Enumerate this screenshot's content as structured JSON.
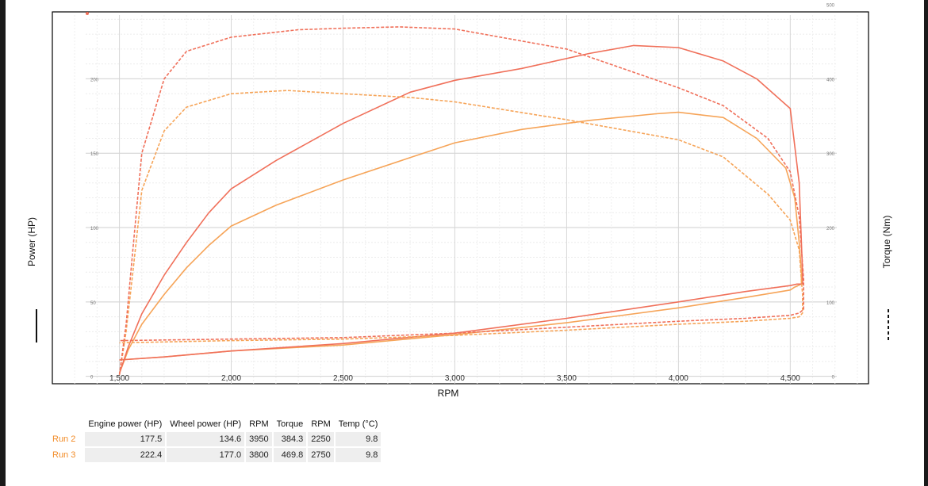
{
  "chart_data": {
    "type": "line",
    "xlabel": "RPM",
    "ylabel_left": "Power (HP)",
    "ylabel_right": "Torque (Nm)",
    "xlim": [
      1200,
      4850
    ],
    "x_ticks": [
      1500,
      2000,
      2500,
      3000,
      3500,
      4000,
      4500
    ],
    "x_tick_labels": [
      "1,500",
      "2,000",
      "2,500",
      "3,000",
      "3,500",
      "4,000",
      "4,500"
    ],
    "ylim_left": [
      -5,
      245
    ],
    "y_ticks_left": [
      0,
      50,
      100,
      150,
      200
    ],
    "ylim_right": [
      -10,
      490
    ],
    "y_ticks_right": [
      0,
      100,
      200,
      300,
      400,
      500
    ],
    "grid": true,
    "colors": {
      "run2": "#f6a458",
      "run3": "#f0705a",
      "axis": "#000000",
      "grid": "#dddddd"
    },
    "series": [
      {
        "name": "Run 2",
        "measure": "power",
        "axis": "left",
        "style": "solid",
        "color": "#f6a458",
        "x": [
          1500,
          1540,
          1600,
          1700,
          1800,
          1900,
          2000,
          2200,
          2500,
          2800,
          3000,
          3300,
          3600,
          3900,
          4000,
          4200,
          4350,
          4480,
          4520,
          4540,
          4550,
          4550,
          4520,
          4500,
          4300,
          4000,
          3500,
          3000,
          2500,
          2000,
          1700,
          1500
        ],
        "y": [
          2,
          18,
          35,
          55,
          73,
          88,
          101,
          115,
          132,
          147,
          157,
          166,
          172,
          176.5,
          177.5,
          174,
          160,
          140,
          120,
          90,
          70,
          62,
          60,
          58,
          53,
          46,
          36,
          28,
          21,
          17,
          13,
          11
        ]
      },
      {
        "name": "Run 3",
        "measure": "power",
        "axis": "left",
        "style": "solid",
        "color": "#f0705a",
        "x": [
          1500,
          1540,
          1600,
          1700,
          1800,
          1900,
          2000,
          2200,
          2500,
          2800,
          3000,
          3300,
          3600,
          3800,
          4000,
          4200,
          4350,
          4500,
          4540,
          4550,
          4555,
          4555,
          4530,
          4500,
          4300,
          4000,
          3500,
          3000,
          2500,
          2000,
          1700,
          1500
        ],
        "y": [
          2,
          20,
          42,
          68,
          90,
          110,
          126,
          145,
          170,
          191,
          199,
          207,
          217,
          222.4,
          221,
          212,
          200,
          180,
          130,
          90,
          70,
          62,
          62,
          61,
          57,
          50,
          39,
          29,
          22,
          17,
          13,
          11
        ]
      },
      {
        "name": "Run 2",
        "measure": "torque",
        "axis": "right",
        "style": "dashed",
        "color": "#f6a458",
        "x": [
          1500,
          1530,
          1560,
          1600,
          1700,
          1800,
          2000,
          2250,
          2500,
          2800,
          3000,
          3500,
          4000,
          4200,
          4400,
          4500,
          4540,
          4555,
          4555,
          4540,
          4500,
          4300,
          4000,
          3500,
          3000,
          2500,
          2000,
          1500
        ],
        "y": [
          2,
          60,
          140,
          250,
          330,
          362,
          380,
          384.3,
          380,
          375,
          369,
          345,
          318,
          295,
          245,
          210,
          170,
          110,
          85,
          80,
          78,
          74,
          70,
          62,
          55,
          50,
          48,
          45
        ]
      },
      {
        "name": "Run 3",
        "measure": "torque",
        "axis": "right",
        "style": "dashed",
        "color": "#f0705a",
        "x": [
          1500,
          1530,
          1560,
          1600,
          1700,
          1800,
          2000,
          2300,
          2500,
          2750,
          3000,
          3500,
          4000,
          4200,
          4400,
          4500,
          4540,
          4560,
          4560,
          4540,
          4500,
          4300,
          4000,
          3500,
          3000,
          2500,
          2000,
          1500
        ],
        "y": [
          2,
          70,
          170,
          300,
          400,
          437,
          456,
          466,
          468,
          469.8,
          467,
          440,
          388,
          364,
          320,
          275,
          215,
          130,
          90,
          85,
          82,
          78,
          74,
          66,
          58,
          52,
          50,
          48
        ]
      }
    ]
  },
  "table": {
    "headers": [
      "",
      "Engine power (HP)",
      "Wheel power (HP)",
      "RPM",
      "Torque",
      "RPM",
      "Temp (°C)"
    ],
    "rows": [
      {
        "label": "Run 2",
        "cells": [
          "177.5",
          "134.6",
          "3950",
          "384.3",
          "2250",
          "9.8"
        ]
      },
      {
        "label": "Run 3",
        "cells": [
          "222.4",
          "177.0",
          "3800",
          "469.8",
          "2750",
          "9.8"
        ]
      }
    ]
  },
  "legend": {
    "power_line_icon": "solid-line-icon",
    "torque_line_icon": "dashed-line-icon"
  }
}
